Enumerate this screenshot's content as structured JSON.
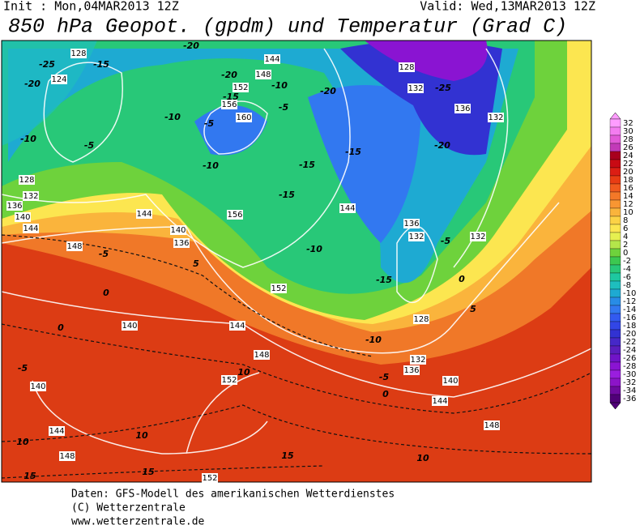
{
  "header": {
    "init": "Init : Mon,04MAR2013 12Z",
    "valid": "Valid: Wed,13MAR2013 12Z",
    "title": "850 hPa Geopot. (gpdm) und Temperatur (Grad C)"
  },
  "colorbar": {
    "levels": [
      32,
      30,
      28,
      26,
      24,
      22,
      20,
      18,
      16,
      14,
      12,
      10,
      8,
      6,
      4,
      2,
      0,
      -2,
      -4,
      -6,
      -8,
      -10,
      -12,
      -14,
      -16,
      -18,
      -20,
      -22,
      -24,
      -26,
      -28,
      -30,
      -32,
      -34,
      -36
    ],
    "colors": [
      "#ff9cff",
      "#f47cf0",
      "#e25ad8",
      "#c23ab8",
      "#a8001e",
      "#c80a14",
      "#dc1e14",
      "#e83c14",
      "#f05a1e",
      "#f47828",
      "#f89632",
      "#fab43c",
      "#fcd246",
      "#fce650",
      "#e6f050",
      "#b4e64a",
      "#6ed23c",
      "#3cc850",
      "#28c878",
      "#1ec8a0",
      "#1ebebe",
      "#1eaad2",
      "#288ce6",
      "#3278f0",
      "#325af0",
      "#3246e6",
      "#3232d2",
      "#4628c8",
      "#5a1ebe",
      "#7014c8",
      "#8a14d2",
      "#9a1ede",
      "#8c14c8",
      "#6e0aa0",
      "#500078"
    ]
  },
  "map_labels": [
    "128",
    "-25",
    "-15",
    "-20",
    "124",
    "-10",
    "-5",
    "128",
    "132",
    "136",
    "140",
    "144",
    "144",
    "148",
    "140",
    "136",
    "-5",
    "5",
    "0",
    "0",
    "140",
    "144",
    "148",
    "-5",
    "140",
    "152",
    "10",
    "144",
    "10",
    "10",
    "148",
    "15",
    "15",
    "152",
    "15",
    "10",
    "148",
    "144",
    "140",
    "0",
    "-5",
    "136",
    "132",
    "-10",
    "128",
    "-15",
    "-10",
    "152",
    "156",
    "144",
    "-15",
    "-15",
    "-15",
    "-10",
    "-5",
    "160",
    "156",
    "152",
    "148",
    "144",
    "-20",
    "-15",
    "-10",
    "-5",
    "-20",
    "-10",
    "-20",
    "132",
    "-25",
    "136",
    "132",
    "-20",
    "128",
    "136",
    "132",
    "-5",
    "132",
    "0",
    "5"
  ],
  "footer": [
    "Daten: GFS-Modell des amerikanischen Wetterdienstes",
    "(C) Wetterzentrale",
    "www.wetterzentrale.de"
  ]
}
